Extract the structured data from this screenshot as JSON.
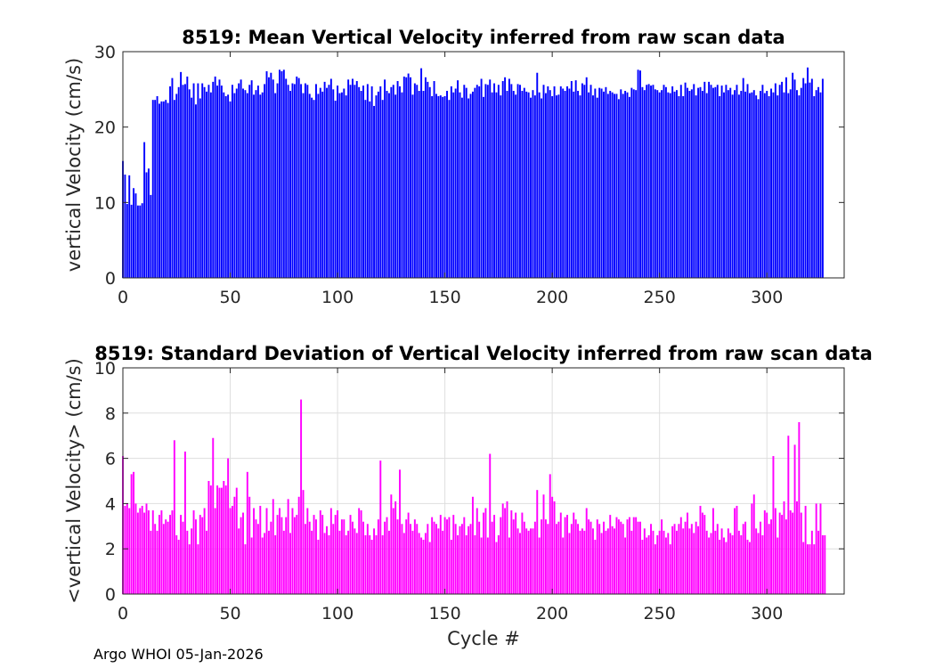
{
  "footer": {
    "text": "Argo WHOI 05-Jan-2026"
  },
  "colors": {
    "mean": "#0000ff",
    "std": "#ff00ff",
    "grid": "#dedede",
    "axis": "#262626"
  },
  "chart_data": [
    {
      "type": "bar",
      "title": "8519: Mean Vertical Velocity inferred from raw scan data",
      "xlabel": "",
      "ylabel": "vertical Velocity (cm/s)",
      "xlim": [
        0,
        336
      ],
      "ylim": [
        0,
        30
      ],
      "xticks": [
        0,
        50,
        100,
        150,
        200,
        250,
        300
      ],
      "yticks": [
        0,
        10,
        20,
        30
      ],
      "grid": false,
      "x_start": 0,
      "values": [
        15.5,
        13.7,
        9.8,
        13.6,
        9.7,
        11.9,
        11.2,
        9.6,
        9.6,
        9.9,
        18,
        14,
        14.5,
        11,
        23.6,
        23.6,
        24.1,
        23.1,
        23.4,
        23.4,
        23.6,
        23.2,
        25.4,
        26.5,
        23.6,
        24.4,
        25.3,
        27.3,
        25.6,
        25.7,
        26.7,
        25,
        23.9,
        25.8,
        23,
        25.8,
        23.8,
        25.8,
        25.3,
        24.7,
        25.6,
        24.6,
        26,
        26.7,
        25.5,
        26.3,
        25.5,
        24.6,
        24.1,
        24.3,
        23.4,
        25.6,
        24.5,
        25.1,
        25.8,
        26.3,
        25.1,
        24.9,
        24.5,
        25.6,
        26.2,
        24.3,
        24.9,
        25.5,
        24.3,
        24.6,
        25.7,
        27.4,
        26.6,
        27.2,
        26.3,
        24.5,
        25.8,
        27.6,
        27.4,
        27.6,
        26.4,
        25.6,
        24.8,
        25.8,
        25.7,
        26.7,
        26.5,
        25.7,
        24.5,
        25.8,
        25.6,
        24.4,
        23.9,
        23.6,
        25.7,
        24.4,
        25.2,
        24.7,
        26,
        25.2,
        25.6,
        26.4,
        25,
        23.5,
        25.5,
        24.5,
        24.6,
        25.1,
        24.2,
        26.3,
        25.6,
        26.4,
        25.6,
        26.1,
        25.3,
        24.8,
        25.5,
        23.6,
        25.7,
        23.4,
        25.4,
        22.8,
        24.2,
        24.7,
        25.4,
        23.6,
        26.3,
        24.8,
        24.5,
        25.3,
        25.6,
        24.3,
        26.1,
        25.4,
        24.6,
        26.7,
        26.6,
        27.1,
        26.6,
        24.3,
        25.8,
        25.6,
        24.8,
        27.8,
        24.8,
        26.6,
        26,
        25.3,
        24.1,
        26.1,
        24.4,
        24.1,
        24.2,
        24,
        24.1,
        24.8,
        23.6,
        25.4,
        24.6,
        25.1,
        26.2,
        24.6,
        23.9,
        25.6,
        25.2,
        23.8,
        24.4,
        24.7,
        25.2,
        25.6,
        25.4,
        26.4,
        24,
        25.7,
        25.6,
        26.3,
        24.6,
        25.8,
        24.6,
        25.6,
        24.2,
        26.1,
        26.6,
        24.8,
        26.4,
        25.7,
        24.8,
        24.3,
        25.7,
        25.6,
        24.8,
        25.2,
        24.7,
        24.6,
        23.9,
        24.9,
        24.2,
        27.2,
        24.6,
        23.8,
        25.6,
        24.5,
        25.4,
        24.9,
        24.1,
        25.4,
        24.2,
        24.3,
        25.4,
        25.1,
        24.8,
        25.4,
        25.1,
        26.1,
        24.7,
        26.2,
        24.8,
        24.2,
        25.8,
        25.6,
        26.6,
        24.6,
        25.6,
        24.2,
        25.1,
        23.9,
        25.2,
        25.1,
        24.7,
        25.3,
        24.4,
        24.8,
        24.6,
        24.4,
        24.4,
        23.7,
        25,
        24.4,
        24.8,
        24.6,
        24,
        25.2,
        25,
        24.9,
        27.6,
        27.5,
        25.3,
        24.9,
        25.6,
        25.7,
        25.5,
        25.6,
        25,
        24.9,
        24.6,
        24.9,
        25.6,
        25.3,
        24.6,
        24.5,
        25.4,
        24.7,
        24.9,
        24.1,
        25.6,
        24.1,
        25.9,
        25.2,
        24.8,
        25,
        25.7,
        24.2,
        25.2,
        25.3,
        24.8,
        26,
        24.5,
        26,
        25.6,
        25.2,
        25.3,
        25.6,
        24.1,
        25.5,
        24.6,
        25.6,
        24.9,
        25.2,
        24.3,
        24.9,
        25.6,
        24.3,
        24.8,
        26.5,
        24.7,
        25.7,
        24.5,
        24.6,
        24.9,
        24.2,
        23.7,
        24.8,
        25.6,
        24.5,
        24.8,
        24.1,
        25.1,
        24.6,
        25.8,
        24.2,
        25.6,
        26,
        24.6,
        26.6,
        24.5,
        25,
        27.2,
        26.3,
        24.9,
        24.2,
        25.2,
        26.5,
        25.8,
        27.9,
        25.9,
        26.4,
        24.1,
        24.9,
        25.3,
        24.6,
        26.4
      ]
    },
    {
      "type": "bar",
      "title": "8519: Standard Deviation of Vertical Velocity inferred from raw scan data",
      "xlabel": "Cycle #",
      "ylabel": "<vertical Velocity> (cm/s)",
      "xlim": [
        0,
        336
      ],
      "ylim": [
        0,
        10
      ],
      "xticks": [
        0,
        50,
        100,
        150,
        200,
        250,
        300
      ],
      "yticks": [
        0,
        2,
        4,
        6,
        8,
        10
      ],
      "grid": true,
      "x_start": 0,
      "values": [
        6.1,
        3.9,
        4,
        3.8,
        5.3,
        5.4,
        4,
        3.6,
        3.8,
        3.9,
        3.6,
        4,
        3.7,
        2.8,
        3.7,
        3.1,
        2.8,
        3.5,
        3.7,
        3.1,
        3.3,
        3.2,
        3.5,
        3.7,
        6.8,
        2.6,
        2.4,
        3.5,
        3.2,
        6.3,
        2.8,
        2.2,
        2.9,
        3.7,
        3.3,
        2.2,
        3.5,
        3.4,
        3.8,
        2.8,
        5,
        4.8,
        6.9,
        3.8,
        4.8,
        4.7,
        4.7,
        5,
        4.8,
        6,
        3.8,
        3.9,
        4.3,
        4.7,
        2.9,
        3.4,
        3.6,
        2.2,
        5.4,
        4.3,
        2.5,
        3.8,
        3.3,
        3.1,
        3.9,
        2.5,
        2.7,
        3.8,
        2.8,
        3.2,
        4.2,
        2.6,
        3.5,
        3.8,
        3.4,
        2.8,
        3.4,
        4.2,
        2.7,
        3.8,
        3.4,
        3.5,
        4.3,
        8.6,
        4.6,
        3.1,
        3.8,
        3.2,
        2.8,
        3.5,
        3.3,
        2.4,
        3.7,
        3.5,
        2.7,
        3,
        2.6,
        3.8,
        3.1,
        3.5,
        3.7,
        2.8,
        3.3,
        3.3,
        2.6,
        2.8,
        3.5,
        3.2,
        2.9,
        2.7,
        3.8,
        3.7,
        3.2,
        2.6,
        3.1,
        2.6,
        2.4,
        2.9,
        2.6,
        3.3,
        5.9,
        2.6,
        3.2,
        3.4,
        2.8,
        4.4,
        3.8,
        4.1,
        3.3,
        5.5,
        3.1,
        2.7,
        3.3,
        3.6,
        3.1,
        2.8,
        3.3,
        3.1,
        2.7,
        2.5,
        2.4,
        2.7,
        3.1,
        2.3,
        3.4,
        3.2,
        3.1,
        2.9,
        3.5,
        2.8,
        3.4,
        3.3,
        3.4,
        2.4,
        3.5,
        3.1,
        2.6,
        3,
        3.1,
        3.4,
        2.6,
        3,
        3.1,
        4.3,
        2.6,
        3.8,
        3.2,
        2.5,
        3.6,
        3.8,
        2.5,
        6.2,
        3.2,
        3.5,
        2.3,
        2.6,
        3.4,
        4,
        3.8,
        4.1,
        2.5,
        3.7,
        3.3,
        3.6,
        2.9,
        2.7,
        3.6,
        3.2,
        2.9,
        2.8,
        2.9,
        2.9,
        3.2,
        4.6,
        2.5,
        3.3,
        4.4,
        3.3,
        3.1,
        5.3,
        4.3,
        4.1,
        3.1,
        3.2,
        3.6,
        2.5,
        3.4,
        3.5,
        2.7,
        3.1,
        3.6,
        3.3,
        3.1,
        2.8,
        2.9,
        2.8,
        3.8,
        3.3,
        3.2,
        2.9,
        2.4,
        3.3,
        3.1,
        2.7,
        3.2,
        2.8,
        2.9,
        3.5,
        3,
        2.9,
        3.4,
        3.3,
        3.2,
        3.1,
        2.5,
        3.3,
        3.4,
        2.8,
        3.4,
        3.4,
        3.2,
        3.2,
        2.4,
        2.9,
        2.5,
        2.6,
        3.1,
        2.8,
        2.2,
        2.6,
        2.8,
        3.3,
        2.8,
        2.5,
        2.7,
        2.2,
        3,
        3.1,
        2.8,
        3.1,
        3.4,
        2.9,
        3.2,
        3.6,
        2.9,
        3.1,
        2.7,
        3.2,
        3,
        3.9,
        3.6,
        3.5,
        2.8,
        2.5,
        2.7,
        3.8,
        2.8,
        3.1,
        2.4,
        2.9,
        2.5,
        2.3,
        2.9,
        2.7,
        2.6,
        3.8,
        3.9,
        2.8,
        2.6,
        3.1,
        3.2,
        2.4,
        2.3,
        4,
        4.4,
        2.9,
        2.7,
        3.2,
        2.6,
        3.7,
        3.6,
        3.1,
        3.3,
        6.1,
        3.8,
        2.5,
        3.6,
        3.5,
        4.1,
        3.3,
        7,
        3.7,
        3.6,
        6.6,
        4.1,
        7.6,
        3.6,
        2.3,
        3.9,
        2.2,
        2.2,
        2.8,
        2.2,
        4,
        2.8,
        4,
        2.6,
        2.6
      ]
    }
  ]
}
